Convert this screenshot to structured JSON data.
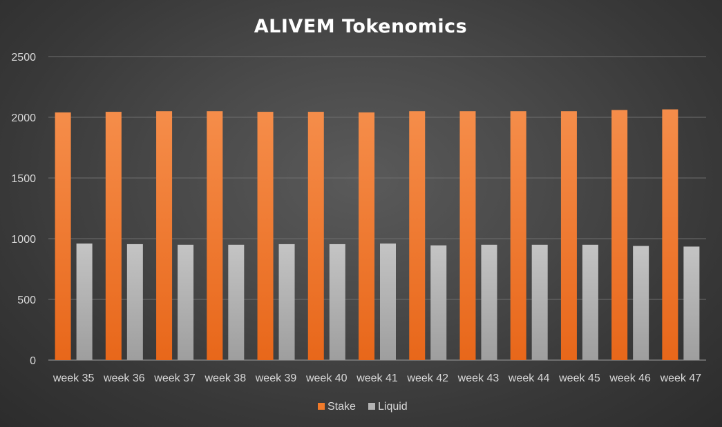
{
  "chart_data": {
    "type": "bar",
    "title": "ALIVEM Tokenomics",
    "xlabel": "",
    "ylabel": "",
    "ylim": [
      0,
      2500
    ],
    "yticks": [
      0,
      500,
      1000,
      1500,
      2000,
      2500
    ],
    "grid": true,
    "legend_position": "bottom",
    "categories": [
      "week 35",
      "week 36",
      "week 37",
      "week 38",
      "week 39",
      "week 40",
      "week 41",
      "week 42",
      "week 43",
      "week 44",
      "week 45",
      "week 46",
      "week 47"
    ],
    "series": [
      {
        "name": "Stake",
        "color": "#f07a2a",
        "values": [
          2040,
          2045,
          2050,
          2050,
          2045,
          2045,
          2040,
          2050,
          2050,
          2050,
          2050,
          2060,
          2065
        ]
      },
      {
        "name": "Liquid",
        "color": "#b3b3b3",
        "values": [
          960,
          955,
          950,
          950,
          955,
          955,
          960,
          945,
          950,
          950,
          950,
          940,
          935
        ]
      }
    ]
  }
}
